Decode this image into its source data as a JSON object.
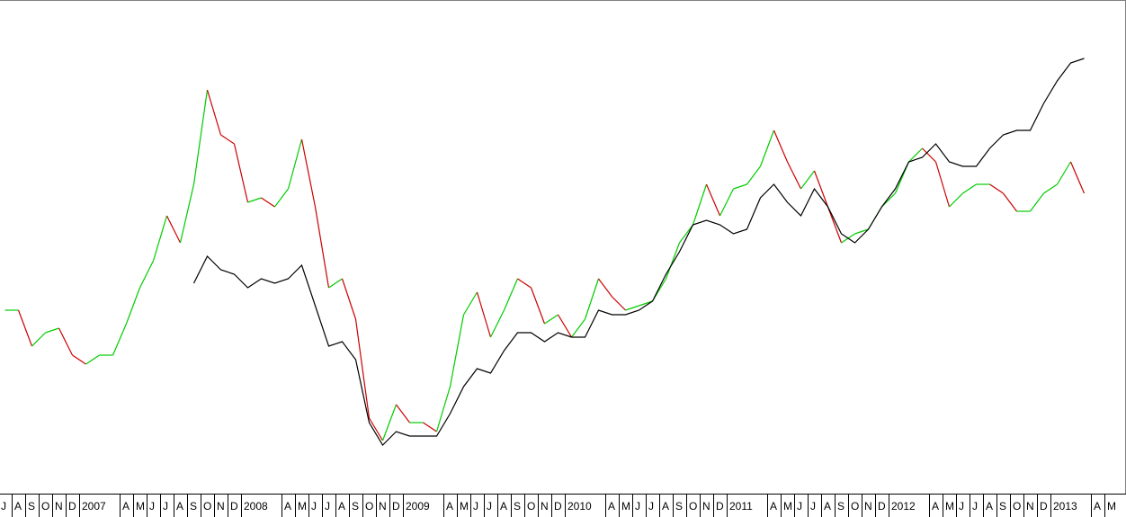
{
  "chart_data": {
    "type": "line",
    "categories": [
      "J",
      "A",
      "S",
      "O",
      "N",
      "D",
      "2007",
      null,
      null,
      "A",
      "M",
      "J",
      "J",
      "A",
      "S",
      "O",
      "N",
      "D",
      "2008",
      null,
      null,
      "A",
      "M",
      "J",
      "J",
      "A",
      "S",
      "O",
      "N",
      "D",
      "2009",
      null,
      null,
      "A",
      "M",
      "J",
      "J",
      "A",
      "S",
      "O",
      "N",
      "D",
      "2010",
      null,
      null,
      "A",
      "M",
      "J",
      "J",
      "A",
      "S",
      "O",
      "N",
      "D",
      "2011",
      null,
      null,
      "A",
      "M",
      "J",
      "J",
      "A",
      "S",
      "O",
      "N",
      "D",
      "2012",
      null,
      null,
      "A",
      "M",
      "J",
      "J",
      "A",
      "S",
      "O",
      "N",
      "D",
      "2013",
      null,
      null,
      "A",
      "M"
    ],
    "series": [
      {
        "up_color": "#00cc00",
        "down_color": "#cc0000",
        "values": [
          195,
          195,
          155,
          170,
          175,
          145,
          135,
          145,
          145,
          180,
          220,
          250,
          300,
          270,
          335,
          440,
          390,
          380,
          315,
          320,
          310,
          330,
          385,
          310,
          220,
          230,
          185,
          75,
          50,
          90,
          70,
          70,
          60,
          110,
          190,
          215,
          165,
          195,
          230,
          220,
          180,
          190,
          165,
          185,
          230,
          210,
          195,
          200,
          205,
          230,
          270,
          290,
          335,
          300,
          330,
          335,
          355,
          395,
          360,
          330,
          350,
          310,
          270,
          280,
          285,
          310,
          325,
          360,
          375,
          360,
          310,
          325,
          335,
          335,
          325,
          305,
          305,
          325,
          335,
          360,
          325,
          null,
          null
        ]
      },
      {
        "color": "#000000",
        "values": [
          null,
          null,
          null,
          null,
          null,
          null,
          null,
          null,
          null,
          null,
          null,
          null,
          null,
          null,
          225,
          255,
          240,
          235,
          220,
          230,
          225,
          230,
          245,
          200,
          155,
          160,
          140,
          70,
          45,
          60,
          55,
          55,
          55,
          80,
          110,
          130,
          125,
          150,
          170,
          170,
          160,
          170,
          165,
          165,
          195,
          190,
          190,
          195,
          205,
          235,
          260,
          290,
          295,
          290,
          280,
          285,
          320,
          335,
          315,
          300,
          330,
          310,
          280,
          270,
          285,
          310,
          330,
          360,
          365,
          380,
          360,
          355,
          355,
          375,
          390,
          395,
          395,
          425,
          450,
          470,
          475,
          null,
          null
        ]
      }
    ],
    "ylim": [
      0,
      540
    ]
  }
}
